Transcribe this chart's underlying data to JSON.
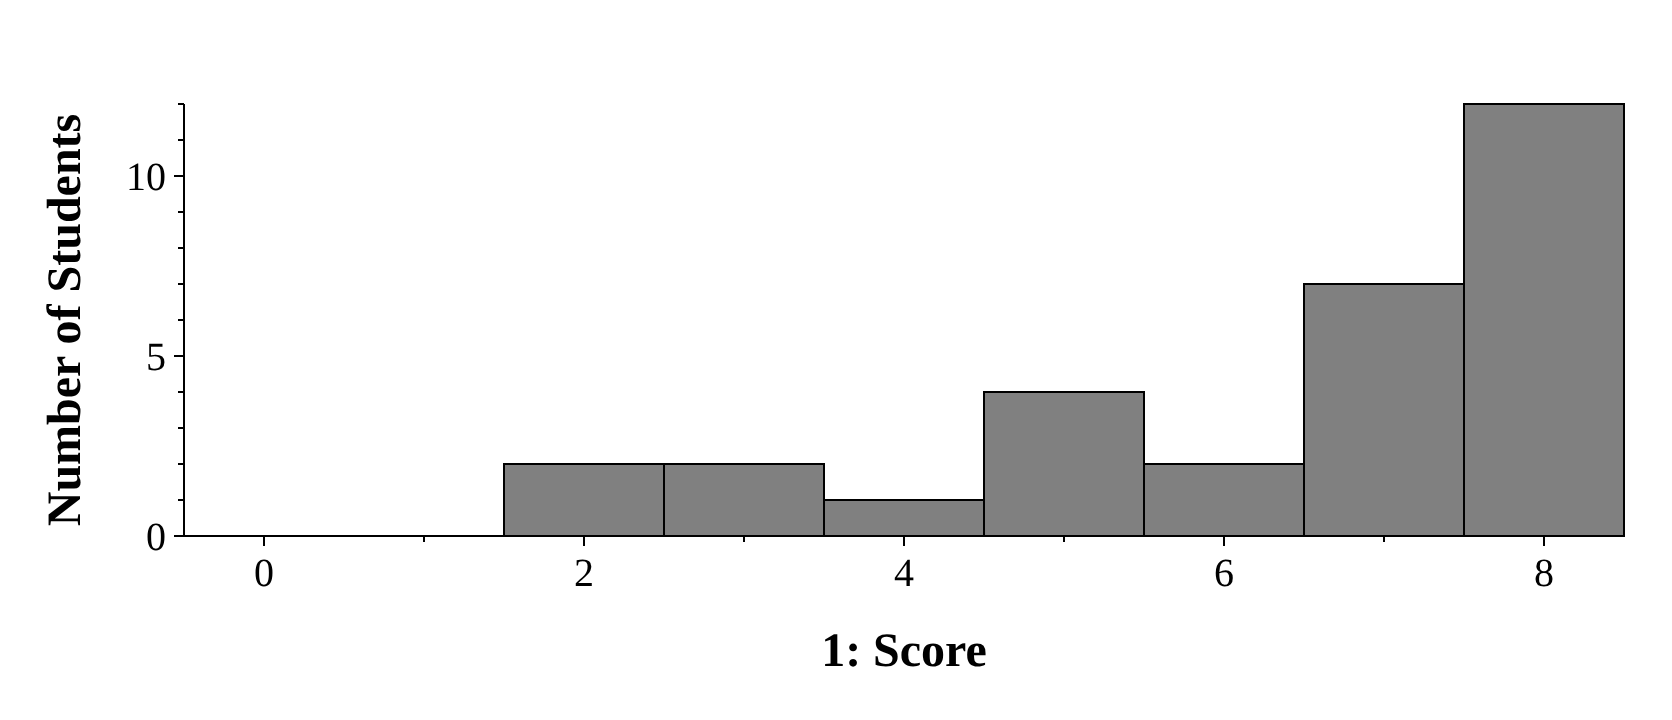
{
  "chart_data": {
    "type": "histogram",
    "xlabel": "1: Score",
    "ylabel": "Number of Students",
    "bins": [
      -0.5,
      0.5,
      1.5,
      2.5,
      3.5,
      4.5,
      5.5,
      6.5,
      7.5,
      8.5
    ],
    "values": [
      0,
      0,
      2,
      2,
      1,
      4,
      2,
      7,
      12
    ],
    "color": "#808080",
    "xlim": [
      -0.5,
      8.5
    ],
    "xticks": [
      0,
      {
        "value": 1,
        "label": null
      },
      2,
      {
        "value": 3,
        "label": null
      },
      4,
      {
        "value": 5,
        "label": null
      },
      6,
      {
        "value": 7,
        "label": null
      },
      8
    ],
    "ylim": [
      0,
      12
    ],
    "yticks": [
      0,
      {
        "value": 1,
        "label": null
      },
      {
        "value": 2,
        "label": null
      },
      {
        "value": 3,
        "label": null
      },
      {
        "value": 4,
        "label": null
      },
      5,
      {
        "value": 6,
        "label": null
      },
      {
        "value": 7,
        "label": null
      },
      {
        "value": 8,
        "label": null
      },
      {
        "value": 9,
        "label": null
      },
      10,
      {
        "value": 11,
        "label": null
      },
      {
        "value": 12,
        "label": null
      }
    ]
  }
}
